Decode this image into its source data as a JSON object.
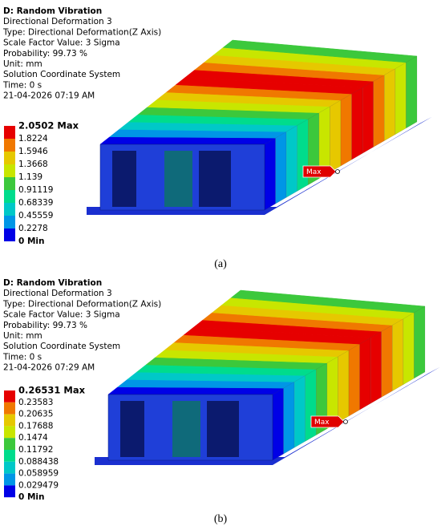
{
  "panels": [
    {
      "title": "D: Random Vibration",
      "lines": [
        "Directional Deformation 3",
        "Type: Directional Deformation(Z Axis)",
        "Scale Factor Value: 3 Sigma",
        "Probability: 99.73 %",
        "Unit: mm",
        "Solution Coordinate System",
        "Time: 0 s",
        "21-04-2026 07:19 AM"
      ],
      "legend": {
        "labels": [
          "2.0502 Max",
          "1.8224",
          "1.5946",
          "1.3668",
          "1.139",
          "0.91119",
          "0.68339",
          "0.45559",
          "0.2278",
          "0 Min"
        ],
        "colors": [
          "#e60000",
          "#f07800",
          "#e6c800",
          "#c8e600",
          "#3cc83c",
          "#00dc8c",
          "#00c8c8",
          "#0096e6",
          "#0000e6"
        ]
      },
      "marker": "Max",
      "caption": "(a)"
    },
    {
      "title": "D: Random Vibration",
      "lines": [
        "Directional Deformation 3",
        "Type: Directional Deformation(Z Axis)",
        "Scale Factor Value: 3 Sigma",
        "Probability: 99.73 %",
        "Unit: mm",
        "Solution Coordinate System",
        "Time: 0 s",
        "21-04-2026 07:29 AM"
      ],
      "legend": {
        "labels": [
          "0.26531 Max",
          "0.23583",
          "0.20635",
          "0.17688",
          "0.1474",
          "0.11792",
          "0.088438",
          "0.058959",
          "0.029479",
          "0 Min"
        ],
        "colors": [
          "#e60000",
          "#f07800",
          "#e6c800",
          "#c8e600",
          "#3cc83c",
          "#00dc8c",
          "#00c8c8",
          "#0096e6",
          "#0000e6"
        ]
      },
      "marker": "Max",
      "caption": "(b)"
    }
  ]
}
